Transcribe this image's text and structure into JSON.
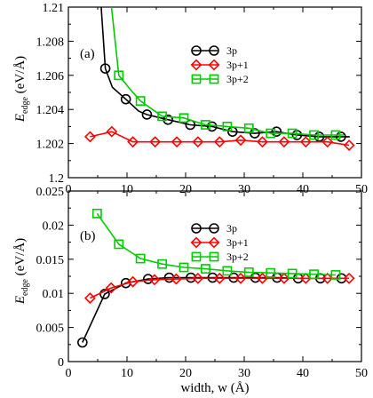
{
  "figure": {
    "xlabel": "width, w (Å)",
    "ylabel_text": "E",
    "ylabel_sub": "edge",
    "ylabel_unit": " (eV/Å)"
  },
  "colors": {
    "3p": "#000000",
    "3p+1": "#ff0000",
    "3p+2": "#00cc00"
  },
  "chart_data": [
    {
      "type": "line",
      "panel_label": "(a)",
      "xlim": [
        0,
        50
      ],
      "ylim": [
        1.2,
        1.21
      ],
      "xticks": [
        0,
        10,
        20,
        30,
        40,
        50
      ],
      "yticks": [
        1.2,
        1.202,
        1.204,
        1.206,
        1.208,
        1.21
      ],
      "ytick_labels": [
        "1.2",
        "1.202",
        "1.204",
        "1.206",
        "1.208",
        "1.21"
      ],
      "xlabel": "",
      "ylabel": "Eedge (eV/Å)",
      "legend_position": "top-right",
      "series": [
        {
          "name": "3p",
          "marker": "circle",
          "x": [
            6.3,
            9.8,
            13.4,
            17.0,
            20.8,
            24.5,
            28.0,
            31.8,
            35.5,
            39.0,
            42.8,
            46.5
          ],
          "y": [
            1.2064,
            1.2046,
            1.2037,
            1.2034,
            1.2031,
            1.203,
            1.2027,
            1.2026,
            1.2027,
            1.2025,
            1.2024,
            1.2024
          ],
          "curve_x": [
            5.5,
            6.3,
            7.5,
            9.8,
            12.0,
            13.4,
            17.0,
            20.8,
            24.5,
            28.0,
            31.8,
            35.5,
            39.0,
            42.8,
            46.5,
            48.0
          ],
          "curve_y": [
            1.2105,
            1.2064,
            1.2053,
            1.2046,
            1.2039,
            1.2037,
            1.2034,
            1.2031,
            1.203,
            1.2027,
            1.2026,
            1.2027,
            1.2025,
            1.2024,
            1.2024,
            1.2024
          ]
        },
        {
          "name": "3p+1",
          "marker": "diamond",
          "x": [
            3.7,
            7.4,
            11.0,
            14.8,
            18.5,
            22.1,
            25.8,
            29.4,
            33.1,
            36.8,
            40.5,
            44.2,
            47.9
          ],
          "y": [
            1.2024,
            1.2027,
            1.2021,
            1.2021,
            1.2021,
            1.2021,
            1.2021,
            1.2022,
            1.2021,
            1.2021,
            1.2021,
            1.2021,
            1.2019
          ]
        },
        {
          "name": "3p+2",
          "marker": "square",
          "x": [
            8.6,
            12.3,
            16.0,
            19.7,
            23.4,
            27.1,
            30.8,
            34.5,
            38.2,
            41.9,
            45.6
          ],
          "y": [
            1.206,
            1.2045,
            1.2036,
            1.2035,
            1.2031,
            1.203,
            1.2029,
            1.2026,
            1.2026,
            1.2025,
            1.2025
          ],
          "curve_x": [
            7.2,
            8.6,
            10.5,
            12.3,
            16.0,
            19.7,
            23.4,
            27.1,
            30.8,
            34.5,
            38.2,
            41.9,
            45.6,
            47.0
          ],
          "curve_y": [
            1.2105,
            1.206,
            1.2052,
            1.2045,
            1.2036,
            1.2035,
            1.2031,
            1.203,
            1.2029,
            1.2026,
            1.2026,
            1.2025,
            1.2025,
            1.2025
          ]
        }
      ]
    },
    {
      "type": "line",
      "panel_label": "(b)",
      "xlim": [
        0,
        50
      ],
      "ylim": [
        0,
        0.025
      ],
      "xticks": [
        0,
        10,
        20,
        30,
        40,
        50
      ],
      "yticks": [
        0,
        0.005,
        0.01,
        0.015,
        0.02,
        0.025
      ],
      "ytick_labels": [
        "0",
        "0.005",
        "0.01",
        "0.015",
        "0.02",
        "0.025"
      ],
      "xlabel": "width, w (Å)",
      "ylabel": "Eedge (eV/Å)",
      "legend_position": "top-right",
      "series": [
        {
          "name": "3p",
          "marker": "circle",
          "x": [
            2.4,
            6.2,
            9.8,
            13.6,
            17.2,
            20.9,
            24.6,
            28.2,
            31.9,
            35.6,
            39.2,
            43.0,
            46.6
          ],
          "y": [
            0.0028,
            0.0099,
            0.0115,
            0.0121,
            0.0123,
            0.0123,
            0.0123,
            0.0123,
            0.0123,
            0.0123,
            0.0122,
            0.0122,
            0.0122
          ]
        },
        {
          "name": "3p+1",
          "marker": "diamond",
          "x": [
            3.7,
            7.3,
            11.0,
            14.7,
            18.4,
            22.1,
            25.8,
            29.4,
            33.1,
            36.8,
            40.5,
            44.2,
            47.9
          ],
          "y": [
            0.0093,
            0.0108,
            0.0117,
            0.012,
            0.0121,
            0.0122,
            0.0122,
            0.0122,
            0.0122,
            0.0122,
            0.0122,
            0.0122,
            0.0122
          ]
        },
        {
          "name": "3p+2",
          "marker": "square",
          "x": [
            4.9,
            8.6,
            12.3,
            16.0,
            19.7,
            23.4,
            27.1,
            30.8,
            34.5,
            38.2,
            41.9,
            45.6
          ],
          "y": [
            0.0217,
            0.0172,
            0.0151,
            0.0143,
            0.0138,
            0.0136,
            0.0133,
            0.0131,
            0.013,
            0.0129,
            0.0128,
            0.0127
          ]
        }
      ]
    }
  ]
}
